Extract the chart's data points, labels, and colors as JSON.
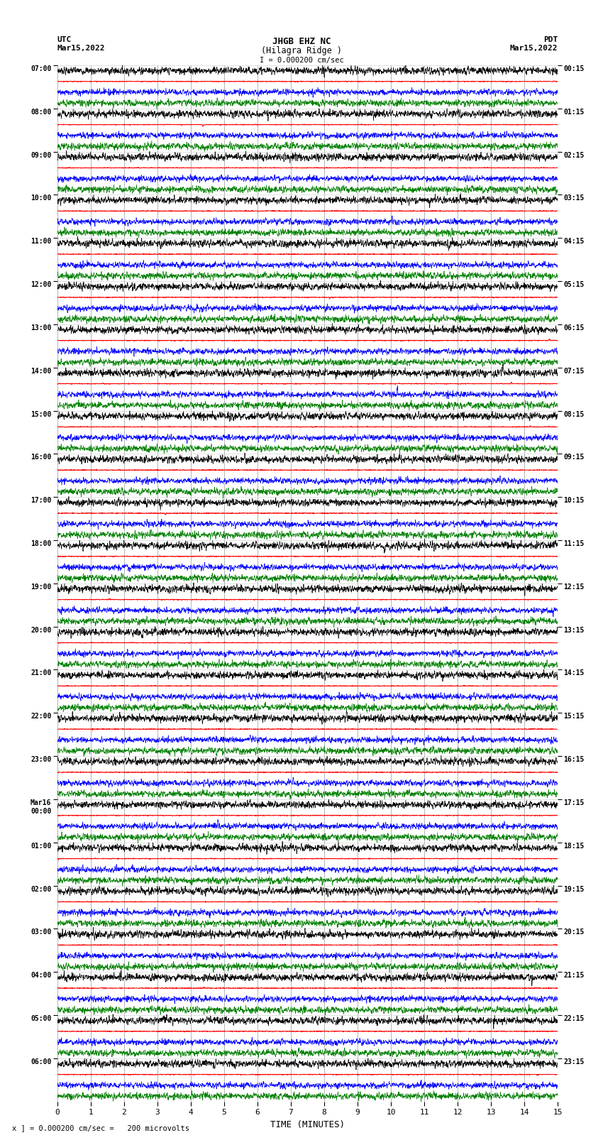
{
  "title_line1": "JHGB EHZ NC",
  "title_line2": "(Hilagra Ridge )",
  "scale_text": "I = 0.000200 cm/sec",
  "left_label": "UTC",
  "left_date": "Mar15,2022",
  "right_label": "PDT",
  "right_date": "Mar15,2022",
  "xlabel": "TIME (MINUTES)",
  "footer_text": "x ] = 0.000200 cm/sec =   200 microvolts",
  "x_min": 0,
  "x_max": 15,
  "bg_color": "#ffffff",
  "trace_colors": [
    "#000000",
    "#ff0000",
    "#0000ff",
    "#008000"
  ],
  "vgrid_color": "#888888",
  "left_times_utc": [
    "07:00",
    "08:00",
    "09:00",
    "10:00",
    "11:00",
    "12:00",
    "13:00",
    "14:00",
    "15:00",
    "16:00",
    "17:00",
    "18:00",
    "19:00",
    "20:00",
    "21:00",
    "22:00",
    "23:00",
    "Mar16\n00:00",
    "01:00",
    "02:00",
    "03:00",
    "04:00",
    "05:00",
    "06:00"
  ],
  "right_times_pdt": [
    "00:15",
    "01:15",
    "02:15",
    "03:15",
    "04:15",
    "05:15",
    "06:15",
    "07:15",
    "08:15",
    "09:15",
    "10:15",
    "11:15",
    "12:15",
    "13:15",
    "14:15",
    "15:15",
    "16:15",
    "17:15",
    "18:15",
    "19:15",
    "20:15",
    "21:15",
    "22:15",
    "23:15"
  ],
  "num_row_groups": 24,
  "traces_per_group": 4,
  "figsize": [
    8.5,
    16.13
  ],
  "dpi": 100
}
